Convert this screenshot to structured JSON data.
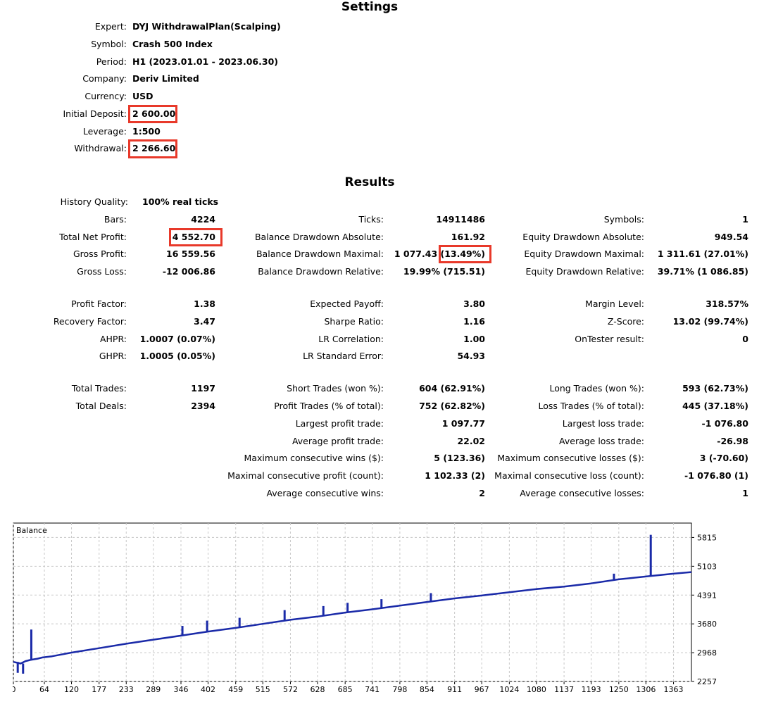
{
  "settings": {
    "title": "Settings",
    "rows": [
      {
        "label": "Expert:",
        "value": "DYJ WithdrawalPlan(Scalping)"
      },
      {
        "label": "Symbol:",
        "value": "Crash 500 Index"
      },
      {
        "label": "Period:",
        "value": "H1 (2023.01.01 - 2023.06.30)"
      },
      {
        "label": "Company:",
        "value": "Deriv Limited"
      },
      {
        "label": "Currency:",
        "value": "USD"
      },
      {
        "label": "Initial Deposit:",
        "value": "2 600.00"
      },
      {
        "label": "Leverage:",
        "value": "1:500"
      },
      {
        "label": "Withdrawal:",
        "value": "2 266.60"
      }
    ]
  },
  "results": {
    "title": "Results",
    "history_quality": {
      "label": "History Quality:",
      "value": "100% real ticks"
    },
    "col1": [
      {
        "label": "Bars:",
        "value": "4224"
      },
      {
        "label": "Total Net Profit:",
        "value": "4 552.70"
      },
      {
        "label": "Gross Profit:",
        "value": "16 559.56"
      },
      {
        "label": "Gross Loss:",
        "value": "-12 006.86"
      },
      {
        "label": "Profit Factor:",
        "value": "1.38"
      },
      {
        "label": "Recovery Factor:",
        "value": "3.47"
      },
      {
        "label": "AHPR:",
        "value": "1.0007 (0.07%)"
      },
      {
        "label": "GHPR:",
        "value": "1.0005 (0.05%)"
      },
      {
        "label": "Total Trades:",
        "value": "1197"
      },
      {
        "label": "Total Deals:",
        "value": "2394"
      }
    ],
    "col2": [
      {
        "label": "Ticks:",
        "value": "14911486"
      },
      {
        "label": "Balance Drawdown Absolute:",
        "value": "161.92"
      },
      {
        "label": "Balance Drawdown Maximal:",
        "value": "1 077.43 (13.49%)"
      },
      {
        "label": "Balance Drawdown Relative:",
        "value": "19.99% (715.51)"
      },
      {
        "label": "Expected Payoff:",
        "value": "3.80"
      },
      {
        "label": "Sharpe Ratio:",
        "value": "1.16"
      },
      {
        "label": "LR Correlation:",
        "value": "1.00"
      },
      {
        "label": "LR Standard Error:",
        "value": "54.93"
      },
      {
        "label": "Short Trades (won %):",
        "value": "604 (62.91%)"
      },
      {
        "label": "Profit Trades (% of total):",
        "value": "752 (62.82%)"
      },
      {
        "label": "Largest profit trade:",
        "value": "1 097.77"
      },
      {
        "label": "Average profit trade:",
        "value": "22.02"
      },
      {
        "label": "Maximum consecutive wins ($):",
        "value": "5 (123.36)"
      },
      {
        "label": "Maximal consecutive profit (count):",
        "value": "1 102.33 (2)"
      },
      {
        "label": "Average consecutive wins:",
        "value": "2"
      }
    ],
    "col3": [
      {
        "label": "Symbols:",
        "value": "1"
      },
      {
        "label": "Equity Drawdown Absolute:",
        "value": "949.54"
      },
      {
        "label": "Equity Drawdown Maximal:",
        "value": "1 311.61 (27.01%)"
      },
      {
        "label": "Equity Drawdown Relative:",
        "value": "39.71% (1 086.85)"
      },
      {
        "label": "Margin Level:",
        "value": "318.57%"
      },
      {
        "label": "Z-Score:",
        "value": "13.02 (99.74%)"
      },
      {
        "label": "OnTester result:",
        "value": "0"
      },
      {
        "label": "Long Trades (won %):",
        "value": "593 (62.73%)"
      },
      {
        "label": "Loss Trades (% of total):",
        "value": "445 (37.18%)"
      },
      {
        "label": "Largest loss trade:",
        "value": "-1 076.80"
      },
      {
        "label": "Average loss trade:",
        "value": "-26.98"
      },
      {
        "label": "Maximum consecutive losses ($):",
        "value": "3 (-70.60)"
      },
      {
        "label": "Maximal consecutive loss (count):",
        "value": "-1 076.80 (1)"
      },
      {
        "label": "Average consecutive losses:",
        "value": "1"
      }
    ]
  },
  "colors": {
    "highlight": "#e8392a",
    "series": "#1a2aa8",
    "grid": "#c8c8c8"
  },
  "chart_data": {
    "type": "line",
    "title": "Balance",
    "x_ticks": [
      "0",
      "64",
      "120",
      "177",
      "233",
      "289",
      "346",
      "402",
      "459",
      "515",
      "572",
      "628",
      "685",
      "741",
      "798",
      "854",
      "911",
      "967",
      "1024",
      "1080",
      "1137",
      "1193",
      "1250",
      "1306",
      "1363"
    ],
    "y_ticks": [
      "5815",
      "5103",
      "4391",
      "3680",
      "2968",
      "2257"
    ],
    "xlim": [
      0,
      1400
    ],
    "ylim": [
      2257,
      6170
    ],
    "grid": true,
    "series": [
      {
        "name": "Balance",
        "x": [
          0,
          15,
          25,
          35,
          50,
          60,
          80,
          120,
          177,
          233,
          289,
          346,
          402,
          459,
          515,
          572,
          628,
          685,
          741,
          798,
          854,
          911,
          967,
          1024,
          1080,
          1137,
          1193,
          1250,
          1306,
          1363,
          1400
        ],
        "y": [
          2740,
          2700,
          2760,
          2790,
          2820,
          2850,
          2880,
          2970,
          3080,
          3190,
          3290,
          3390,
          3490,
          3580,
          3680,
          3780,
          3860,
          3960,
          4040,
          4130,
          4220,
          4310,
          4380,
          4460,
          4540,
          4600,
          4680,
          4780,
          4850,
          4920,
          4960
        ]
      }
    ],
    "spikes": [
      {
        "x": 9,
        "from": 2740,
        "to": 2470
      },
      {
        "x": 20,
        "from": 2700,
        "to": 2450
      },
      {
        "x": 37,
        "from": 2790,
        "to": 3540
      },
      {
        "x": 349,
        "from": 3390,
        "to": 3630
      },
      {
        "x": 400,
        "from": 3490,
        "to": 3760
      },
      {
        "x": 467,
        "from": 3590,
        "to": 3830
      },
      {
        "x": 560,
        "from": 3770,
        "to": 4020
      },
      {
        "x": 640,
        "from": 3880,
        "to": 4120
      },
      {
        "x": 690,
        "from": 3970,
        "to": 4200
      },
      {
        "x": 760,
        "from": 4070,
        "to": 4290
      },
      {
        "x": 862,
        "from": 4230,
        "to": 4440
      },
      {
        "x": 1240,
        "from": 4760,
        "to": 4920
      },
      {
        "x": 1316,
        "from": 4860,
        "to": 5880
      }
    ]
  }
}
